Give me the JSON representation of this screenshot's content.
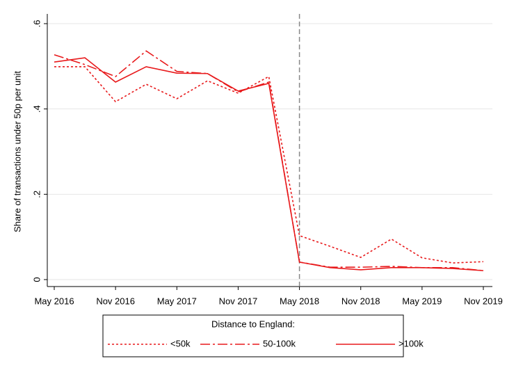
{
  "chart_data": {
    "type": "line",
    "y_label": "Share of transactions under 50p per unit",
    "x": [
      "May 2016",
      "Aug 2016",
      "Nov 2016",
      "Feb 2017",
      "May 2017",
      "Aug 2017",
      "Nov 2017",
      "Feb 2018",
      "May 2018",
      "Aug 2018",
      "Nov 2018",
      "Feb 2019",
      "May 2019",
      "Aug 2019",
      "Nov 2019"
    ],
    "xticks": [
      "May 2016",
      "Nov 2016",
      "May 2017",
      "Nov 2017",
      "May 2018",
      "Nov 2018",
      "May 2019",
      "Nov 2019"
    ],
    "ylim": [
      0,
      0.6
    ],
    "yticks": [
      {
        "value": 0,
        "label": "0"
      },
      {
        "value": 0.2,
        "label": ".2"
      },
      {
        "value": 0.4,
        "label": ".4"
      },
      {
        "value": 0.6,
        "label": ".6"
      }
    ],
    "grid": true,
    "vline": "May 2018",
    "legend_title": "Distance to England:",
    "legend_position": "bottom",
    "series": [
      {
        "name": "<50k",
        "color": "#e8191b",
        "style": "dotted",
        "values": [
          0.499,
          0.499,
          0.417,
          0.458,
          0.424,
          0.466,
          0.437,
          0.476,
          0.103,
          0.078,
          0.052,
          0.095,
          0.051,
          0.039,
          0.042
        ]
      },
      {
        "name": "50-100k",
        "color": "#e8191b",
        "style": "dashdot",
        "values": [
          0.527,
          0.504,
          0.476,
          0.536,
          0.488,
          0.483,
          0.44,
          0.463,
          0.041,
          0.029,
          0.029,
          0.031,
          0.028,
          0.028,
          0.021
        ]
      },
      {
        "name": ">100k",
        "color": "#e8191b",
        "style": "solid",
        "values": [
          0.51,
          0.52,
          0.463,
          0.499,
          0.484,
          0.483,
          0.442,
          0.46,
          0.041,
          0.028,
          0.023,
          0.028,
          0.028,
          0.026,
          0.021
        ]
      }
    ]
  }
}
